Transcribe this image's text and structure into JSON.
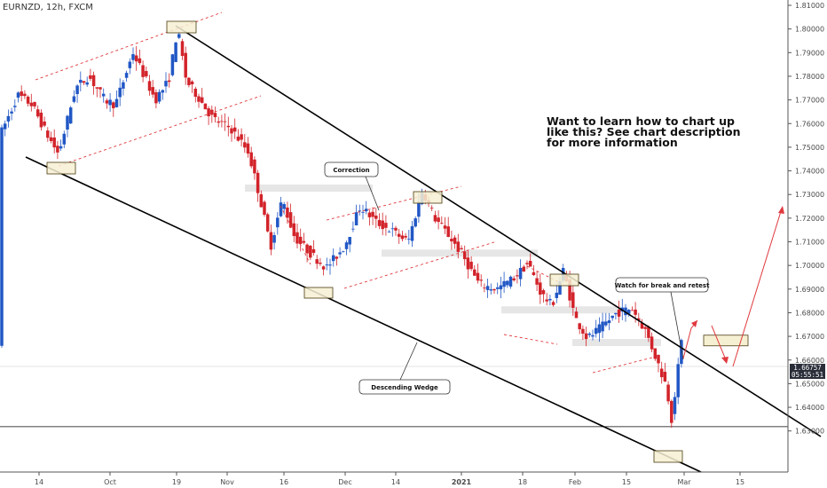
{
  "symbol": {
    "ticker": "EURNZD",
    "interval": "12h",
    "source": "FXCM"
  },
  "price_tag": {
    "price": "1.66757",
    "countdown": "05:55:51"
  },
  "annotations": {
    "promo": [
      "Want to learn how to chart up",
      "like this? See chart description",
      "for more information"
    ],
    "correction": "Correction",
    "descending_wedge": "Descending Wedge",
    "watch": "Watch for break and retest"
  },
  "colors": {
    "up": "#2157c5",
    "down": "#d2232a",
    "trend": "#000000",
    "channel": "#e0393e",
    "zone_fill": "#f6f0d2",
    "zone_border": "#4a3a10",
    "grid_axis": "#555555"
  },
  "chart_data": {
    "type": "candlestick",
    "y_ticks": [
      "1.81000",
      "1.80000",
      "1.79000",
      "1.78000",
      "1.77000",
      "1.76000",
      "1.75000",
      "1.74000",
      "1.73000",
      "1.72000",
      "1.71000",
      "1.70000",
      "1.69000",
      "1.68000",
      "1.67000",
      "1.66000",
      "1.65000",
      "1.64000",
      "1.63000"
    ],
    "x_ticks": [
      "14",
      "Oct",
      "19",
      "Nov",
      "16",
      "Dec",
      "14",
      "2021",
      "18",
      "Feb",
      "15",
      "Mar",
      "15"
    ],
    "ylim": [
      1.6248,
      1.815
    ],
    "key_levels": {
      "base": 1.6318,
      "retest_zone": [
        1.666,
        1.6705
      ],
      "resistance_bands": [
        1.7327,
        1.7052,
        1.6812,
        1.6674
      ]
    },
    "trendlines": {
      "upper": [
        [
          "19",
          1.8008
        ],
        [
          "Mar",
          1.67
        ],
        [
          "end",
          1.641
        ]
      ],
      "lower": [
        [
          "start",
          1.7505
        ],
        [
          "Mar",
          1.624
        ]
      ]
    },
    "swing_points": [
      {
        "label": "14",
        "price": 1.7455
      },
      {
        "label": "19",
        "price": 1.8008
      },
      {
        "label": "Dec",
        "price": 1.6962
      },
      {
        "label": "Dec 14+",
        "price": 1.7345
      },
      {
        "label": "Feb",
        "price": 1.701
      },
      {
        "label": "Mar",
        "price": 1.6325
      }
    ],
    "projection": [
      1.67,
      1.687,
      1.672,
      1.731
    ],
    "candles": []
  }
}
